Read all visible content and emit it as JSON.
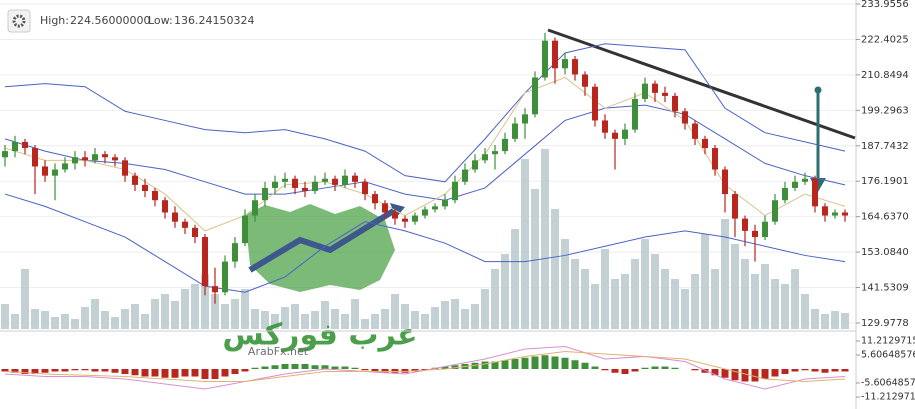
{
  "chart_data": {
    "type": "candlestick",
    "header": {
      "high_label": "High:",
      "high": "224.56000000",
      "low_label": "Low:",
      "low": "136.24150324"
    },
    "watermark": {
      "arabic": "عرب فوركس",
      "latin": "ArabFx.net"
    },
    "up_color": "#3f8f3a",
    "down_color": "#b8261d",
    "volume_color": "#b9c8cd",
    "ylim": [
      129.9778,
      233.9556
    ],
    "yticks": [
      233.9556,
      222.4025,
      210.8494,
      199.2963,
      187.7432,
      176.1901,
      {
        "value": 164.637,
        "label": "164.6370"
      },
      {
        "value": 153.084,
        "label": "153.0840"
      },
      141.5309,
      129.9778
    ],
    "grid": true,
    "candles": [
      [
        184,
        188,
        181,
        186
      ],
      [
        186,
        191,
        184,
        189
      ],
      [
        189,
        190,
        185,
        187
      ],
      [
        187,
        188,
        172,
        181
      ],
      [
        181,
        183,
        176,
        178
      ],
      [
        178,
        182,
        170,
        180
      ],
      [
        180,
        184,
        179,
        182
      ],
      [
        182,
        186,
        180,
        184
      ],
      [
        184,
        186,
        181,
        183
      ],
      [
        183,
        187,
        182,
        185
      ],
      [
        185,
        186,
        182,
        184
      ],
      [
        184,
        185,
        181,
        183
      ],
      [
        183,
        184,
        176,
        178
      ],
      [
        178,
        179,
        173,
        175
      ],
      [
        175,
        177,
        171,
        173
      ],
      [
        173,
        174,
        168,
        170
      ],
      [
        170,
        171,
        164,
        166
      ],
      [
        166,
        168,
        161,
        163
      ],
      [
        163,
        164,
        159,
        161
      ],
      [
        161,
        162,
        156,
        158
      ],
      [
        158,
        159,
        139,
        142
      ],
      [
        142,
        148,
        136.2415,
        140
      ],
      [
        140,
        152,
        139,
        150
      ],
      [
        150,
        158,
        148,
        156
      ],
      [
        156,
        167,
        155,
        165
      ],
      [
        165,
        172,
        163,
        170
      ],
      [
        170,
        176,
        168,
        174
      ],
      [
        174,
        178,
        172,
        176
      ],
      [
        176,
        179,
        174,
        177
      ],
      [
        177,
        178,
        172,
        174
      ],
      [
        174,
        176,
        171,
        173
      ],
      [
        173,
        178,
        172,
        176
      ],
      [
        176,
        179,
        175,
        177
      ],
      [
        177,
        178,
        173,
        175
      ],
      [
        175,
        180,
        174,
        178
      ],
      [
        178,
        179,
        174,
        176
      ],
      [
        176,
        177,
        170,
        172
      ],
      [
        172,
        173,
        167,
        169
      ],
      [
        169,
        170,
        164,
        166
      ],
      [
        166,
        167,
        162,
        164
      ],
      [
        164,
        165,
        161,
        163
      ],
      [
        163,
        166,
        162,
        165
      ],
      [
        165,
        168,
        164,
        167
      ],
      [
        167,
        169,
        166,
        168
      ],
      [
        168,
        172,
        167,
        170
      ],
      [
        170,
        178,
        169,
        176
      ],
      [
        176,
        182,
        175,
        180
      ],
      [
        180,
        185,
        179,
        183
      ],
      [
        183,
        187,
        182,
        185
      ],
      [
        185,
        188,
        180,
        186
      ],
      [
        186,
        192,
        185,
        190
      ],
      [
        190,
        197,
        189,
        195
      ],
      [
        195,
        200,
        190,
        198
      ],
      [
        198,
        212,
        197,
        210
      ],
      [
        210,
        224.56,
        209,
        222
      ],
      [
        222,
        223,
        208,
        213
      ],
      [
        213,
        218,
        211,
        216
      ],
      [
        216,
        217,
        209,
        211
      ],
      [
        211,
        212,
        204,
        207
      ],
      [
        207,
        208,
        194,
        196
      ],
      [
        196,
        198,
        190,
        192
      ],
      [
        192,
        193,
        180,
        190
      ],
      [
        190,
        195,
        188,
        193
      ],
      [
        193,
        205,
        192,
        203
      ],
      [
        203,
        210,
        202,
        208
      ],
      [
        208,
        209,
        202,
        205
      ],
      [
        205,
        207,
        202,
        204
      ],
      [
        204,
        205,
        197,
        199
      ],
      [
        199,
        200,
        193,
        195
      ],
      [
        195,
        196,
        188,
        190
      ],
      [
        190,
        191,
        185,
        187
      ],
      [
        187,
        188,
        178,
        180
      ],
      [
        180,
        181,
        166,
        172
      ],
      [
        172,
        173,
        158,
        164
      ],
      [
        164,
        165,
        155,
        160
      ],
      [
        160,
        162,
        150,
        158
      ],
      [
        158,
        165,
        157,
        163
      ],
      [
        163,
        172,
        162,
        170
      ],
      [
        170,
        176,
        169,
        174
      ],
      [
        174,
        178,
        173,
        176
      ],
      [
        176,
        179,
        175,
        177
      ],
      [
        177,
        178,
        166,
        168
      ],
      [
        168,
        169,
        163,
        165
      ],
      [
        165,
        167,
        164,
        166
      ],
      [
        166,
        167,
        163,
        165
      ]
    ],
    "volume_lim": [
      0,
      200
    ],
    "volume": [
      25,
      15,
      60,
      20,
      18,
      12,
      15,
      10,
      22,
      30,
      18,
      12,
      20,
      25,
      15,
      30,
      35,
      28,
      40,
      45,
      55,
      35,
      25,
      30,
      40,
      20,
      18,
      15,
      22,
      25,
      15,
      18,
      28,
      20,
      15,
      30,
      10,
      15,
      20,
      35,
      25,
      18,
      15,
      22,
      28,
      30,
      20,
      25,
      40,
      60,
      75,
      100,
      170,
      140,
      180,
      120,
      90,
      70,
      60,
      45,
      80,
      50,
      55,
      70,
      90,
      75,
      60,
      50,
      40,
      55,
      95,
      60,
      110,
      85,
      70,
      55,
      65,
      50,
      45,
      60,
      35,
      20,
      15,
      18,
      16
    ],
    "bands": {
      "x": [
        0,
        4,
        8,
        12,
        16,
        20,
        24,
        28,
        32,
        36,
        40,
        44,
        48,
        52,
        56,
        60,
        64,
        68,
        72,
        76,
        80,
        84
      ],
      "series": [
        {
          "name": "upper",
          "color": "#4a62c6",
          "values": [
            207,
            208,
            207,
            199,
            196,
            193,
            192,
            193,
            190,
            186,
            178,
            176,
            190,
            205,
            218,
            221,
            220,
            219,
            200,
            192,
            189,
            186
          ]
        },
        {
          "name": "middle",
          "color": "#4a62c6",
          "values": [
            190,
            186,
            183,
            182,
            180,
            176,
            172,
            172,
            174,
            176,
            172,
            170,
            174,
            185,
            196,
            200,
            201,
            198,
            190,
            182,
            178,
            175
          ]
        },
        {
          "name": "lower",
          "color": "#4a62c6",
          "values": [
            172,
            168,
            163,
            158,
            150,
            142,
            140,
            145,
            155,
            163,
            160,
            156,
            150,
            150,
            152,
            155,
            158,
            160,
            158,
            155,
            152,
            150
          ]
        },
        {
          "name": "ma",
          "color": "#d8c48c",
          "values": [
            187,
            183,
            183,
            180,
            172,
            160,
            165,
            175,
            176,
            172,
            165,
            172,
            185,
            205,
            210,
            200,
            205,
            196,
            175,
            165,
            172,
            168
          ]
        }
      ]
    },
    "macd_lim": [
      -14.4,
      13.6
    ],
    "macd_ticks": [
      11.21297152,
      5.60648576,
      -5.60648576,
      -11.21297152
    ],
    "macd_hist": [
      -1,
      -1.5,
      -2,
      -2,
      -1.5,
      -1,
      -1,
      -0.5,
      -0.5,
      -1,
      -1,
      -1.5,
      -2,
      -2.5,
      -3,
      -3,
      -3.5,
      -3.5,
      -3,
      -3,
      -4,
      -4,
      -3,
      -2,
      -1,
      0.5,
      1,
      1.5,
      2,
      2,
      2,
      1.5,
      1.5,
      1,
      1,
      0.5,
      -0.5,
      -1,
      -1.5,
      -1.5,
      -1.5,
      -1,
      -0.5,
      0.5,
      1,
      1.5,
      2,
      2.5,
      3,
      3,
      3.5,
      4,
      4.5,
      5,
      5.5,
      5,
      4.5,
      3.5,
      2.5,
      1,
      -0.5,
      -1.5,
      -2,
      -1,
      0.5,
      1,
      1,
      0.5,
      0,
      -0.5,
      -1.5,
      -2.5,
      -3.5,
      -4.5,
      -5,
      -5,
      -4,
      -3,
      -2,
      -1,
      -0.5,
      -1,
      -1.5,
      -1,
      -1
    ],
    "macd_lines": [
      {
        "name": "macd",
        "color": "#d98fd2",
        "values": [
          -2,
          -3,
          -3,
          -4,
          -6,
          -8,
          -5,
          -2,
          0,
          -1,
          -2,
          1,
          4,
          8,
          9,
          4,
          5,
          3,
          -4,
          -8,
          -4,
          -3
        ]
      },
      {
        "name": "signal",
        "color": "#e2b36f",
        "values": [
          -1,
          -2,
          -2.5,
          -3,
          -4,
          -5,
          -5,
          -3,
          -1,
          -1,
          -1,
          0,
          2,
          5,
          7,
          6,
          5,
          4,
          0,
          -4,
          -5,
          -4
        ]
      }
    ]
  }
}
